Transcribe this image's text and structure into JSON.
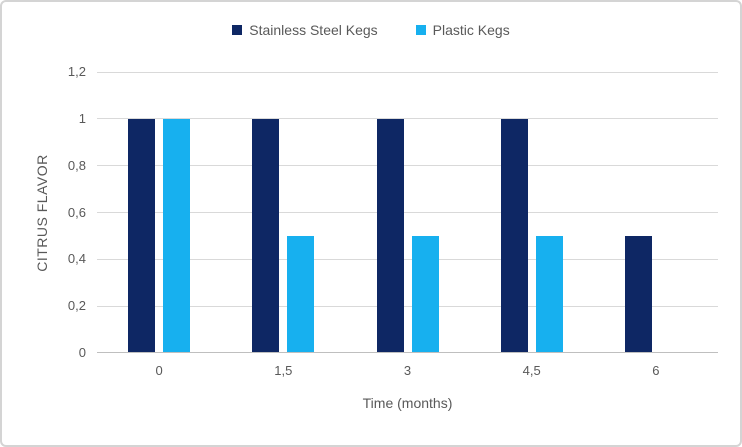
{
  "chart_data": {
    "type": "bar",
    "title": "",
    "xlabel": "Time (months)",
    "ylabel": "CITRUS FLAVOR",
    "categories": [
      "0",
      "1,5",
      "3",
      "4,5",
      "6"
    ],
    "series": [
      {
        "name": "Stainless Steel Kegs",
        "color": "#0e2764",
        "values": [
          1,
          1,
          1,
          1,
          0.5
        ]
      },
      {
        "name": "Plastic Kegs",
        "color": "#17b0ef",
        "values": [
          1,
          0.5,
          0.5,
          0.5,
          0
        ]
      }
    ],
    "ylim": [
      0,
      1.2
    ],
    "y_ticks": [
      {
        "label": "0",
        "value": 0
      },
      {
        "label": "0,2",
        "value": 0.2
      },
      {
        "label": "0,4",
        "value": 0.4
      },
      {
        "label": "0,6",
        "value": 0.6
      },
      {
        "label": "0,8",
        "value": 0.8
      },
      {
        "label": "1",
        "value": 1.0
      },
      {
        "label": "1,2",
        "value": 1.2
      }
    ],
    "grid": "horizontal",
    "legend_position": "top"
  },
  "colors": {
    "gridline": "#d9d9d9",
    "axis_line": "#bfbfbf",
    "text": "#595959",
    "frame_border": "#d4d4d4"
  }
}
